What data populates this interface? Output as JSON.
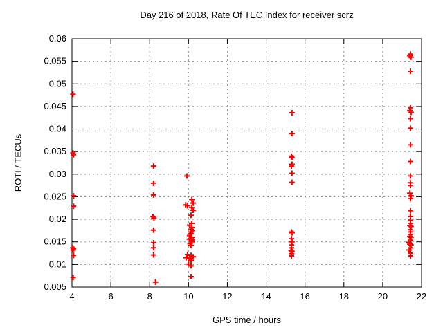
{
  "window": {
    "background_color": "#ffffff",
    "foreground_color": "#000000",
    "grid_color": "#909090",
    "accent_color": "#ff0000"
  },
  "chart_data": {
    "type": "scatter",
    "title": "Day 216 of 2018, Rate Of TEC Index for receiver scrz",
    "xlabel": "GPS time / hours",
    "ylabel": "ROTI / TECUs",
    "xlim": [
      4,
      22
    ],
    "ylim": [
      0.005,
      0.06
    ],
    "x_ticks": [
      4,
      6,
      8,
      10,
      12,
      14,
      16,
      18,
      20,
      22
    ],
    "x_tick_labels": [
      "4",
      "6",
      "8",
      "10",
      "12",
      "14",
      "16",
      "18",
      "20",
      "22"
    ],
    "y_ticks": [
      0.005,
      0.01,
      0.015,
      0.02,
      0.025,
      0.03,
      0.035,
      0.04,
      0.045,
      0.05,
      0.055,
      0.06
    ],
    "y_tick_labels": [
      "0.005",
      "0.01",
      "0.015",
      "0.02",
      "0.025",
      "0.03",
      "0.035",
      "0.04",
      "0.045",
      "0.05",
      "0.055",
      "0.06"
    ],
    "grid": true,
    "legend": "none",
    "marker": {
      "shape": "plus",
      "color": "#ff0000",
      "size": 9,
      "stroke_width": 2
    },
    "series": [
      {
        "name": "ROTI",
        "color": "#ff0000",
        "points": [
          [
            4.05,
            0.0477
          ],
          [
            4.05,
            0.0347
          ],
          [
            4.08,
            0.0343
          ],
          [
            4.08,
            0.0252
          ],
          [
            4.08,
            0.0229
          ],
          [
            4.04,
            0.0137
          ],
          [
            4.08,
            0.0135
          ],
          [
            4.06,
            0.0132
          ],
          [
            4.08,
            0.012
          ],
          [
            4.06,
            0.0071
          ],
          [
            8.2,
            0.0318
          ],
          [
            8.2,
            0.028
          ],
          [
            8.2,
            0.0254
          ],
          [
            8.17,
            0.0206
          ],
          [
            8.22,
            0.0203
          ],
          [
            8.2,
            0.0176
          ],
          [
            8.2,
            0.0148
          ],
          [
            8.2,
            0.0137
          ],
          [
            8.2,
            0.0121
          ],
          [
            8.3,
            0.0061
          ],
          [
            9.92,
            0.0296
          ],
          [
            10.17,
            0.0244
          ],
          [
            10.24,
            0.0236
          ],
          [
            9.85,
            0.0232
          ],
          [
            9.95,
            0.023
          ],
          [
            10.17,
            0.0226
          ],
          [
            10.24,
            0.022
          ],
          [
            10.13,
            0.0209
          ],
          [
            10.17,
            0.0191
          ],
          [
            10.06,
            0.0187
          ],
          [
            10.17,
            0.0182
          ],
          [
            10.13,
            0.0178
          ],
          [
            10.2,
            0.0175
          ],
          [
            10.13,
            0.0172
          ],
          [
            10.13,
            0.0168
          ],
          [
            10.06,
            0.0164
          ],
          [
            10.17,
            0.016
          ],
          [
            10.13,
            0.0157
          ],
          [
            10.04,
            0.0156
          ],
          [
            10.17,
            0.0155
          ],
          [
            10.15,
            0.0152
          ],
          [
            10.17,
            0.015
          ],
          [
            10.08,
            0.0146
          ],
          [
            10.13,
            0.0142
          ],
          [
            9.95,
            0.0122
          ],
          [
            10.13,
            0.012
          ],
          [
            10.24,
            0.0117
          ],
          [
            9.88,
            0.0115
          ],
          [
            10.06,
            0.0113
          ],
          [
            10.13,
            0.0109
          ],
          [
            10.0,
            0.0101
          ],
          [
            10.13,
            0.0097
          ],
          [
            10.13,
            0.0073
          ],
          [
            15.33,
            0.0436
          ],
          [
            15.33,
            0.039
          ],
          [
            15.3,
            0.034
          ],
          [
            15.33,
            0.0337
          ],
          [
            15.33,
            0.0322
          ],
          [
            15.3,
            0.0318
          ],
          [
            15.33,
            0.0302
          ],
          [
            15.33,
            0.0282
          ],
          [
            15.3,
            0.0172
          ],
          [
            15.33,
            0.017
          ],
          [
            15.3,
            0.0157
          ],
          [
            15.33,
            0.015
          ],
          [
            15.3,
            0.0143
          ],
          [
            15.3,
            0.0137
          ],
          [
            15.28,
            0.0131
          ],
          [
            15.33,
            0.0129
          ],
          [
            15.3,
            0.0124
          ],
          [
            15.3,
            0.0119
          ],
          [
            21.43,
            0.0566
          ],
          [
            21.4,
            0.0562
          ],
          [
            21.46,
            0.0559
          ],
          [
            21.43,
            0.0528
          ],
          [
            21.43,
            0.0447
          ],
          [
            21.4,
            0.0441
          ],
          [
            21.46,
            0.0437
          ],
          [
            21.43,
            0.0423
          ],
          [
            21.43,
            0.0402
          ],
          [
            21.43,
            0.0365
          ],
          [
            21.43,
            0.0328
          ],
          [
            21.43,
            0.0296
          ],
          [
            21.43,
            0.0281
          ],
          [
            21.43,
            0.0275
          ],
          [
            21.4,
            0.0258
          ],
          [
            21.46,
            0.0252
          ],
          [
            21.43,
            0.0246
          ],
          [
            21.43,
            0.0219
          ],
          [
            21.43,
            0.0206
          ],
          [
            21.43,
            0.0198
          ],
          [
            21.43,
            0.0191
          ],
          [
            21.4,
            0.0186
          ],
          [
            21.46,
            0.0184
          ],
          [
            21.43,
            0.0177
          ],
          [
            21.43,
            0.0172
          ],
          [
            21.43,
            0.0166
          ],
          [
            21.4,
            0.0162
          ],
          [
            21.46,
            0.016
          ],
          [
            21.43,
            0.0154
          ],
          [
            21.36,
            0.0149
          ],
          [
            21.4,
            0.0145
          ],
          [
            21.46,
            0.0143
          ],
          [
            21.43,
            0.0137
          ],
          [
            21.36,
            0.0132
          ],
          [
            21.43,
            0.0125
          ],
          [
            21.43,
            0.0119
          ]
        ]
      }
    ]
  }
}
